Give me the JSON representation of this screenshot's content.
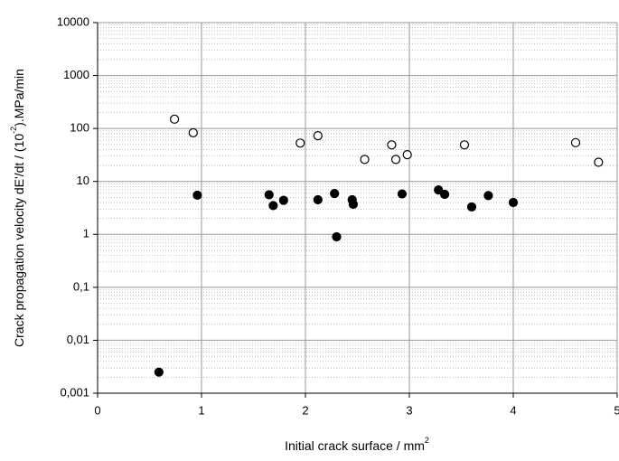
{
  "chart_data": {
    "type": "scatter",
    "x_label": "Initial crack surface  / mm",
    "x_label_sup": "2",
    "y_label": "Crack propagation velocity  dE'/dt    / (10",
    "y_label_sup": "-2",
    "y_label_end": ").MPa/min",
    "xlim": [
      0,
      5
    ],
    "xticks": [
      0,
      1,
      2,
      3,
      4,
      5
    ],
    "ylim": [
      0.001,
      10000
    ],
    "y_log": true,
    "yticks": [
      {
        "value": 0.001,
        "label": "0,001"
      },
      {
        "value": 0.01,
        "label": "0,01"
      },
      {
        "value": 0.1,
        "label": "0,1"
      },
      1,
      10,
      100,
      1000,
      10000
    ],
    "grid": true,
    "minor_grid": true,
    "series": [
      {
        "marker": "open",
        "color": "#000000",
        "x": [
          0.74,
          0.92,
          1.95,
          2.12,
          2.57,
          2.83,
          2.87,
          2.98,
          3.53,
          4.6,
          4.82
        ],
        "values": [
          150,
          83,
          53,
          73,
          26,
          49,
          26,
          32,
          49,
          54,
          23
        ]
      },
      {
        "marker": "filled",
        "color": "#000000",
        "x": [
          0.59,
          0.96,
          1.65,
          1.69,
          1.79,
          2.12,
          2.28,
          2.3,
          2.45,
          2.46,
          2.93,
          3.28,
          3.34,
          3.6,
          3.76,
          4.0
        ],
        "values": [
          0.0025,
          5.5,
          5.6,
          3.5,
          4.4,
          4.5,
          5.9,
          0.9,
          4.5,
          3.7,
          5.8,
          6.9,
          5.7,
          3.3,
          5.4,
          4.0
        ]
      }
    ]
  }
}
